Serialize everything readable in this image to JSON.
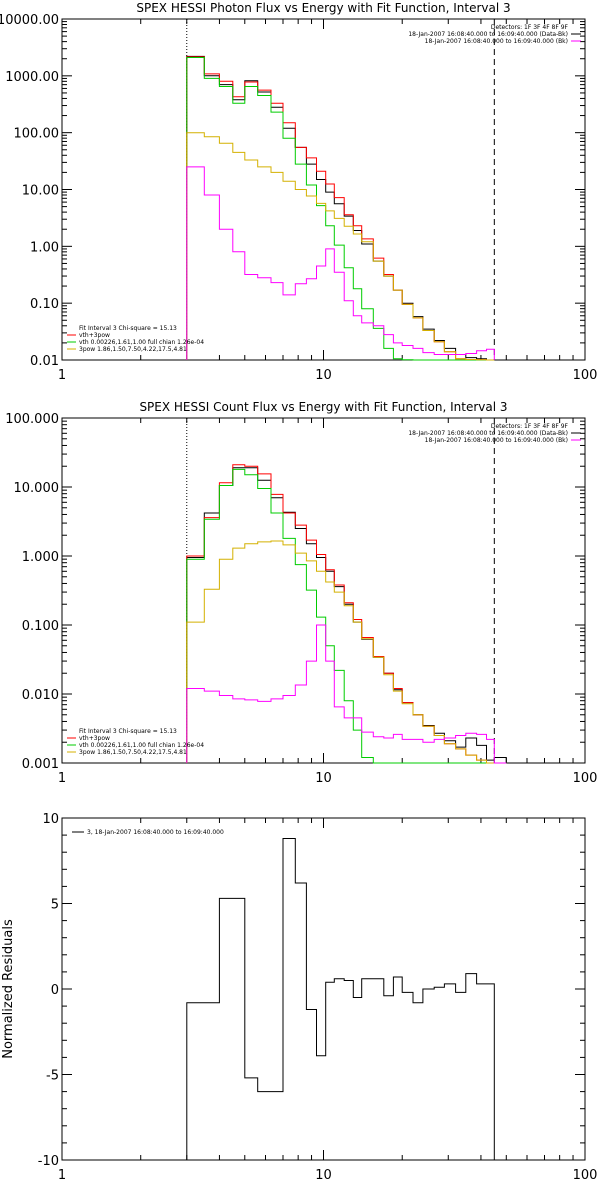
{
  "chart_data": [
    {
      "type": "line",
      "step": true,
      "title": "SPEX HESSI Photon Flux vs Energy with Fit Function, Interval 3",
      "xscale": "log",
      "yscale": "log",
      "xlim": [
        1,
        100
      ],
      "ylim": [
        0.01,
        10000
      ],
      "yticks": [
        0.01,
        0.1,
        1,
        10,
        100,
        1000,
        10000
      ],
      "ytick_labels": [
        "0.01",
        "0.10",
        "1.00",
        "10.00",
        "100.00",
        "1000.00",
        "10000.00"
      ],
      "xticks": [
        1,
        10,
        100
      ],
      "xtick_labels": [
        "1",
        "10",
        "100"
      ],
      "vlines": [
        {
          "x": 3,
          "style": "dotted"
        },
        {
          "x": 45,
          "style": "dashed"
        }
      ],
      "legend_top": [
        "Detectors: 1F 3F 4F 8F 9F",
        "18-Jan-2007 16:08:40.000 to 16:09:40.000 (Data-Bk)",
        "18-Jan-2007 16:08:40.000 to 16:09:40.000 (Bk)"
      ],
      "legend_bottom": [
        "Fit Interval  3    Chi-square = 15.13",
        "vth+3pow",
        "vth 0.00226,1.61,1.00  full chian 1.26e-04",
        "3pow 1.86,1.50,7.50,4.22,17.5,4.81"
      ],
      "edges": [
        3,
        3.5,
        4,
        4.5,
        5,
        5.6,
        6.3,
        7,
        7.8,
        8.6,
        9.4,
        10.2,
        11,
        12,
        13,
        14,
        15.5,
        17,
        18.5,
        20,
        22,
        24,
        26.5,
        29,
        32,
        35,
        38.5,
        42,
        45
      ],
      "series": [
        {
          "name": "Data-Bk",
          "color": "#000000",
          "values": [
            2200,
            1000,
            700,
            380,
            820,
            520,
            280,
            120,
            55,
            28,
            15,
            9,
            5.6,
            3.4,
            1.9,
            1.1,
            0.55,
            0.3,
            0.17,
            0.1,
            0.058,
            0.035,
            0.022,
            0.016,
            0.0125,
            0.011,
            0.0105,
            0.01
          ]
        },
        {
          "name": "vth+3pow",
          "color": "#ff0000",
          "values": [
            2150,
            1080,
            800,
            430,
            780,
            560,
            330,
            150,
            55,
            36,
            21,
            12.5,
            7.2,
            3.6,
            2.3,
            1.35,
            0.62,
            0.32,
            0.17,
            0.095,
            0.055,
            0.033,
            0.021,
            0.014,
            0.0105,
            0.0102,
            0.0101,
            0.01
          ]
        },
        {
          "name": "vth",
          "color": "#00cc00",
          "values": [
            2100,
            900,
            650,
            330,
            650,
            450,
            230,
            80,
            28,
            12,
            5.2,
            2.3,
            1.05,
            0.42,
            0.18,
            0.08,
            0.036,
            0.016,
            0.0105,
            0.0101,
            0.01,
            0.01,
            0.01,
            0.01,
            0.01,
            0.01,
            0.01,
            0.01
          ]
        },
        {
          "name": "3pow",
          "color": "#d4b000",
          "values": [
            100,
            85,
            65,
            45,
            33,
            25,
            20,
            14,
            10,
            7.7,
            5.7,
            4.2,
            3.1,
            2.25,
            1.65,
            1.2,
            0.55,
            0.3,
            0.17,
            0.095,
            0.055,
            0.033,
            0.021,
            0.014,
            0.0105,
            0.0102,
            0.0101,
            0.01
          ]
        },
        {
          "name": "Bk",
          "color": "#ff00ff",
          "values": [
            25,
            8,
            2,
            0.8,
            0.32,
            0.28,
            0.23,
            0.14,
            0.22,
            0.27,
            0.45,
            0.9,
            0.35,
            0.11,
            0.06,
            0.045,
            0.04,
            0.028,
            0.02,
            0.018,
            0.016,
            0.0135,
            0.0125,
            0.0125,
            0.0125,
            0.013,
            0.0145,
            0.0155
          ]
        }
      ]
    },
    {
      "type": "line",
      "step": true,
      "title": "SPEX HESSI Count Flux vs Energy with Fit Function, Interval 3",
      "xscale": "log",
      "yscale": "log",
      "xlim": [
        1,
        100
      ],
      "ylim": [
        0.001,
        100
      ],
      "yticks": [
        0.001,
        0.01,
        0.1,
        1,
        10,
        100
      ],
      "ytick_labels": [
        "0.001",
        "0.010",
        "0.100",
        "1.000",
        "10.000",
        "100.000"
      ],
      "xticks": [
        1,
        10,
        100
      ],
      "xtick_labels": [
        "1",
        "10",
        "100"
      ],
      "vlines": [
        {
          "x": 3,
          "style": "dotted"
        },
        {
          "x": 45,
          "style": "dashed"
        }
      ],
      "legend_top": [
        "Detectors: 1F 3F 4F 8F 9F",
        "18-Jan-2007 16:08:40.000 to 16:09:40.000 (Data-Bk)",
        "18-Jan-2007 16:08:40.000 to 16:09:40.000 (Bk)"
      ],
      "legend_bottom": [
        "Fit Interval  3    Chi-square = 15.13",
        "vth+3pow",
        "vth 0.00226,1.61,1.00  full chian 1.26e-04",
        "3pow 1.86,1.50,7.50,4.22,17.5,4.81"
      ],
      "edges": [
        3,
        3.5,
        4,
        4.5,
        5,
        5.6,
        6.3,
        7,
        7.8,
        8.6,
        9.4,
        10.2,
        11,
        12,
        13,
        14,
        15.5,
        17,
        18.5,
        20,
        22,
        24,
        26.5,
        29,
        32,
        35,
        38.5,
        42,
        45,
        50
      ],
      "series": [
        {
          "name": "Data-Bk",
          "color": "#000000",
          "values": [
            0.95,
            4.2,
            10.5,
            19,
            19,
            12.5,
            7,
            4.3,
            2.5,
            1.5,
            0.95,
            0.6,
            0.36,
            0.2,
            0.11,
            0.062,
            0.034,
            0.02,
            0.0115,
            0.0075,
            0.005,
            0.0035,
            0.0027,
            0.0021,
            0.0017,
            0.0023,
            0.0018,
            0.0011,
            0.0012
          ]
        },
        {
          "name": "vth+3pow",
          "color": "#ff0000",
          "values": [
            1.0,
            3.6,
            11.5,
            21,
            20,
            15.5,
            7.8,
            4.2,
            2.8,
            1.7,
            1.05,
            0.63,
            0.38,
            0.21,
            0.12,
            0.066,
            0.035,
            0.02,
            0.012,
            0.0075,
            0.005,
            0.0034,
            0.0025,
            0.0019,
            0.0016,
            0.0013,
            0.0011,
            0.001,
            0.001
          ]
        },
        {
          "name": "vth",
          "color": "#00cc00",
          "values": [
            0.9,
            3.4,
            10.5,
            18,
            15,
            9.5,
            4.2,
            1.8,
            0.75,
            0.32,
            0.13,
            0.05,
            0.022,
            0.008,
            0.003,
            0.0012,
            0.001,
            0.001,
            0.001,
            0.001,
            0.001,
            0.001,
            0.001,
            0.001,
            0.001,
            0.001,
            0.001,
            0.001,
            0.001
          ]
        },
        {
          "name": "3pow",
          "color": "#d4b000",
          "values": [
            0.11,
            0.33,
            0.9,
            1.3,
            1.5,
            1.6,
            1.65,
            1.45,
            1.1,
            0.85,
            0.6,
            0.42,
            0.3,
            0.19,
            0.11,
            0.063,
            0.034,
            0.019,
            0.011,
            0.0072,
            0.005,
            0.0034,
            0.0025,
            0.0019,
            0.0016,
            0.0013,
            0.0011,
            0.001,
            0.001
          ]
        },
        {
          "name": "Bk",
          "color": "#ff00ff",
          "values": [
            0.012,
            0.011,
            0.0095,
            0.0085,
            0.0082,
            0.0078,
            0.0085,
            0.0095,
            0.0135,
            0.03,
            0.1,
            0.03,
            0.0065,
            0.0045,
            0.0045,
            0.0028,
            0.0024,
            0.0023,
            0.0026,
            0.0022,
            0.0022,
            0.002,
            0.0022,
            0.0023,
            0.0025,
            0.0027,
            0.0026,
            0.0022,
            0.001
          ]
        }
      ]
    },
    {
      "type": "line",
      "step": true,
      "title": "",
      "xscale": "log",
      "yscale": "linear",
      "xlim": [
        1,
        100
      ],
      "ylim": [
        -10,
        10
      ],
      "ylabel": "Normalized Residuals",
      "yticks": [
        -10,
        -5,
        0,
        5,
        10
      ],
      "ytick_labels": [
        "-10",
        "-5",
        "0",
        "5",
        "10"
      ],
      "xticks": [
        1,
        10,
        100
      ],
      "xtick_labels": [
        "1",
        "10",
        "100"
      ],
      "legend_top_left": "3, 18-Jan-2007 16:08:40.000 to 16:09:40.000",
      "edges": [
        3,
        3.5,
        4,
        4.5,
        5,
        5.6,
        6.3,
        7,
        7.8,
        8.6,
        9.4,
        10.2,
        11,
        12,
        13,
        14,
        15.5,
        17,
        18.5,
        20,
        22,
        24,
        26.5,
        29,
        32,
        35,
        38.5,
        42,
        45
      ],
      "series": [
        {
          "name": "3, 18-Jan-2007 16:08:40.000 to 16:09:40.000",
          "color": "#000000",
          "values": [
            -0.8,
            -0.8,
            5.3,
            5.3,
            -5.2,
            -6.0,
            -6.0,
            8.8,
            6.2,
            -1.2,
            -3.9,
            0.4,
            0.6,
            0.5,
            -0.5,
            0.6,
            0.6,
            -0.4,
            0.7,
            -0.2,
            -0.8,
            0.0,
            0.1,
            0.3,
            -0.2,
            0.9,
            0.3,
            0.3
          ]
        }
      ]
    }
  ]
}
